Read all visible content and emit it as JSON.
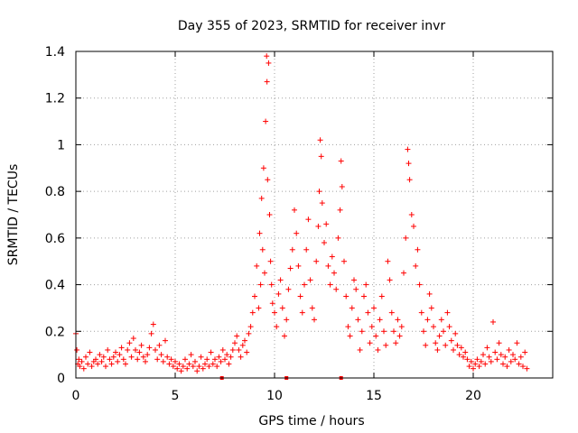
{
  "chart_data": {
    "type": "scatter",
    "title": "Day 355 of 2023, SRMTID for receiver invr",
    "xlabel": "GPS time / hours",
    "ylabel": "SRMTID / TECUs",
    "xlim": [
      0,
      24
    ],
    "ylim": [
      0,
      1.4
    ],
    "x_ticks": [
      0,
      5,
      10,
      15,
      20
    ],
    "x_tick_labels": [
      "0",
      "5",
      "10",
      "15",
      "20"
    ],
    "y_ticks": [
      0,
      0.2,
      0.4,
      0.6,
      0.8,
      1.0,
      1.2,
      1.4
    ],
    "y_tick_labels": [
      "0",
      "0.2",
      "0.4",
      "0.6",
      "0.8",
      "1",
      "1.2",
      "1.4"
    ],
    "grid": true,
    "marker": "+",
    "color": "#ff0000",
    "series": [
      {
        "name": "SRMTID",
        "points": [
          [
            0.0,
            0.19
          ],
          [
            0.05,
            0.12
          ],
          [
            0.1,
            0.06
          ],
          [
            0.15,
            0.08
          ],
          [
            0.2,
            0.05
          ],
          [
            0.3,
            0.07
          ],
          [
            0.4,
            0.04
          ],
          [
            0.5,
            0.09
          ],
          [
            0.6,
            0.06
          ],
          [
            0.7,
            0.11
          ],
          [
            0.8,
            0.05
          ],
          [
            0.9,
            0.07
          ],
          [
            1.0,
            0.08
          ],
          [
            1.1,
            0.06
          ],
          [
            1.2,
            0.1
          ],
          [
            1.3,
            0.07
          ],
          [
            1.4,
            0.09
          ],
          [
            1.5,
            0.05
          ],
          [
            1.6,
            0.12
          ],
          [
            1.7,
            0.08
          ],
          [
            1.8,
            0.06
          ],
          [
            1.9,
            0.09
          ],
          [
            2.0,
            0.11
          ],
          [
            2.1,
            0.07
          ],
          [
            2.2,
            0.1
          ],
          [
            2.3,
            0.13
          ],
          [
            2.4,
            0.08
          ],
          [
            2.5,
            0.06
          ],
          [
            2.6,
            0.12
          ],
          [
            2.7,
            0.15
          ],
          [
            2.8,
            0.09
          ],
          [
            2.9,
            0.17
          ],
          [
            3.0,
            0.12
          ],
          [
            3.1,
            0.08
          ],
          [
            3.2,
            0.11
          ],
          [
            3.3,
            0.14
          ],
          [
            3.4,
            0.09
          ],
          [
            3.5,
            0.07
          ],
          [
            3.6,
            0.1
          ],
          [
            3.7,
            0.13
          ],
          [
            3.8,
            0.19
          ],
          [
            3.9,
            0.23
          ],
          [
            4.0,
            0.12
          ],
          [
            4.1,
            0.08
          ],
          [
            4.2,
            0.14
          ],
          [
            4.3,
            0.1
          ],
          [
            4.4,
            0.07
          ],
          [
            4.5,
            0.16
          ],
          [
            4.6,
            0.09
          ],
          [
            4.7,
            0.06
          ],
          [
            4.8,
            0.08
          ],
          [
            4.9,
            0.05
          ],
          [
            5.0,
            0.07
          ],
          [
            5.1,
            0.04
          ],
          [
            5.2,
            0.06
          ],
          [
            5.3,
            0.03
          ],
          [
            5.4,
            0.05
          ],
          [
            5.5,
            0.08
          ],
          [
            5.6,
            0.04
          ],
          [
            5.7,
            0.06
          ],
          [
            5.8,
            0.1
          ],
          [
            5.9,
            0.05
          ],
          [
            6.0,
            0.07
          ],
          [
            6.1,
            0.03
          ],
          [
            6.2,
            0.05
          ],
          [
            6.3,
            0.09
          ],
          [
            6.4,
            0.04
          ],
          [
            6.5,
            0.06
          ],
          [
            6.6,
            0.08
          ],
          [
            6.7,
            0.05
          ],
          [
            6.8,
            0.11
          ],
          [
            6.9,
            0.06
          ],
          [
            7.0,
            0.08
          ],
          [
            7.1,
            0.05
          ],
          [
            7.2,
            0.09
          ],
          [
            7.3,
            0.07
          ],
          [
            7.4,
            0.12
          ],
          [
            7.5,
            0.08
          ],
          [
            7.6,
            0.1
          ],
          [
            7.7,
            0.06
          ],
          [
            7.8,
            0.09
          ],
          [
            7.9,
            0.12
          ],
          [
            8.0,
            0.15
          ],
          [
            8.1,
            0.18
          ],
          [
            8.2,
            0.12
          ],
          [
            8.3,
            0.09
          ],
          [
            8.4,
            0.14
          ],
          [
            8.5,
            0.16
          ],
          [
            8.6,
            0.11
          ],
          [
            8.7,
            0.19
          ],
          [
            8.8,
            0.22
          ],
          [
            8.9,
            0.28
          ],
          [
            9.0,
            0.35
          ],
          [
            9.1,
            0.48
          ],
          [
            9.2,
            0.3
          ],
          [
            9.25,
            0.62
          ],
          [
            9.3,
            0.4
          ],
          [
            9.35,
            0.77
          ],
          [
            9.4,
            0.55
          ],
          [
            9.45,
            0.9
          ],
          [
            9.5,
            0.45
          ],
          [
            9.55,
            1.1
          ],
          [
            9.6,
            1.38
          ],
          [
            9.62,
            1.27
          ],
          [
            9.65,
            0.85
          ],
          [
            9.7,
            1.35
          ],
          [
            9.75,
            0.7
          ],
          [
            9.8,
            0.5
          ],
          [
            9.85,
            0.4
          ],
          [
            9.9,
            0.32
          ],
          [
            10.0,
            0.28
          ],
          [
            10.1,
            0.22
          ],
          [
            10.2,
            0.36
          ],
          [
            10.3,
            0.42
          ],
          [
            10.4,
            0.3
          ],
          [
            10.5,
            0.18
          ],
          [
            10.6,
            0.25
          ],
          [
            10.7,
            0.38
          ],
          [
            10.8,
            0.47
          ],
          [
            10.9,
            0.55
          ],
          [
            11.0,
            0.72
          ],
          [
            11.1,
            0.62
          ],
          [
            11.2,
            0.48
          ],
          [
            11.3,
            0.35
          ],
          [
            11.4,
            0.28
          ],
          [
            11.5,
            0.4
          ],
          [
            11.6,
            0.55
          ],
          [
            11.7,
            0.68
          ],
          [
            11.8,
            0.42
          ],
          [
            11.9,
            0.3
          ],
          [
            12.0,
            0.25
          ],
          [
            12.1,
            0.5
          ],
          [
            12.2,
            0.65
          ],
          [
            12.25,
            0.8
          ],
          [
            12.3,
            1.02
          ],
          [
            12.35,
            0.95
          ],
          [
            12.4,
            0.75
          ],
          [
            12.5,
            0.58
          ],
          [
            12.6,
            0.66
          ],
          [
            12.7,
            0.48
          ],
          [
            12.8,
            0.4
          ],
          [
            12.9,
            0.52
          ],
          [
            13.0,
            0.45
          ],
          [
            13.1,
            0.38
          ],
          [
            13.2,
            0.6
          ],
          [
            13.3,
            0.72
          ],
          [
            13.35,
            0.93
          ],
          [
            13.4,
            0.82
          ],
          [
            13.5,
            0.5
          ],
          [
            13.6,
            0.35
          ],
          [
            13.7,
            0.22
          ],
          [
            13.8,
            0.18
          ],
          [
            13.9,
            0.3
          ],
          [
            14.0,
            0.42
          ],
          [
            14.1,
            0.38
          ],
          [
            14.2,
            0.25
          ],
          [
            14.3,
            0.12
          ],
          [
            14.4,
            0.2
          ],
          [
            14.5,
            0.35
          ],
          [
            14.6,
            0.4
          ],
          [
            14.7,
            0.28
          ],
          [
            14.8,
            0.15
          ],
          [
            14.9,
            0.22
          ],
          [
            15.0,
            0.3
          ],
          [
            15.1,
            0.18
          ],
          [
            15.2,
            0.12
          ],
          [
            15.3,
            0.25
          ],
          [
            15.4,
            0.35
          ],
          [
            15.5,
            0.2
          ],
          [
            15.6,
            0.14
          ],
          [
            15.7,
            0.5
          ],
          [
            15.8,
            0.42
          ],
          [
            15.9,
            0.28
          ],
          [
            16.0,
            0.2
          ],
          [
            16.1,
            0.15
          ],
          [
            16.2,
            0.25
          ],
          [
            16.3,
            0.18
          ],
          [
            16.4,
            0.22
          ],
          [
            16.5,
            0.45
          ],
          [
            16.6,
            0.6
          ],
          [
            16.7,
            0.98
          ],
          [
            16.75,
            0.92
          ],
          [
            16.8,
            0.85
          ],
          [
            16.9,
            0.7
          ],
          [
            17.0,
            0.65
          ],
          [
            17.1,
            0.48
          ],
          [
            17.2,
            0.55
          ],
          [
            17.3,
            0.4
          ],
          [
            17.4,
            0.28
          ],
          [
            17.5,
            0.2
          ],
          [
            17.6,
            0.14
          ],
          [
            17.7,
            0.25
          ],
          [
            17.8,
            0.36
          ],
          [
            17.9,
            0.3
          ],
          [
            18.0,
            0.22
          ],
          [
            18.1,
            0.15
          ],
          [
            18.2,
            0.12
          ],
          [
            18.3,
            0.18
          ],
          [
            18.4,
            0.25
          ],
          [
            18.5,
            0.2
          ],
          [
            18.6,
            0.14
          ],
          [
            18.7,
            0.28
          ],
          [
            18.8,
            0.22
          ],
          [
            18.9,
            0.16
          ],
          [
            19.0,
            0.12
          ],
          [
            19.1,
            0.19
          ],
          [
            19.2,
            0.14
          ],
          [
            19.3,
            0.1
          ],
          [
            19.4,
            0.13
          ],
          [
            19.5,
            0.09
          ],
          [
            19.6,
            0.11
          ],
          [
            19.7,
            0.08
          ],
          [
            19.8,
            0.05
          ],
          [
            19.9,
            0.07
          ],
          [
            20.0,
            0.04
          ],
          [
            20.1,
            0.06
          ],
          [
            20.2,
            0.08
          ],
          [
            20.3,
            0.05
          ],
          [
            20.4,
            0.07
          ],
          [
            20.5,
            0.1
          ],
          [
            20.6,
            0.06
          ],
          [
            20.7,
            0.13
          ],
          [
            20.8,
            0.09
          ],
          [
            20.9,
            0.07
          ],
          [
            21.0,
            0.24
          ],
          [
            21.1,
            0.11
          ],
          [
            21.2,
            0.08
          ],
          [
            21.3,
            0.15
          ],
          [
            21.4,
            0.1
          ],
          [
            21.5,
            0.06
          ],
          [
            21.6,
            0.09
          ],
          [
            21.7,
            0.05
          ],
          [
            21.8,
            0.12
          ],
          [
            21.9,
            0.07
          ],
          [
            22.0,
            0.1
          ],
          [
            22.1,
            0.08
          ],
          [
            22.2,
            0.15
          ],
          [
            22.3,
            0.06
          ],
          [
            22.4,
            0.09
          ],
          [
            22.5,
            0.05
          ],
          [
            22.6,
            0.11
          ],
          [
            22.7,
            0.04
          ]
        ]
      }
    ],
    "gap_markers_x": [
      7.35,
      10.6,
      13.35
    ]
  }
}
